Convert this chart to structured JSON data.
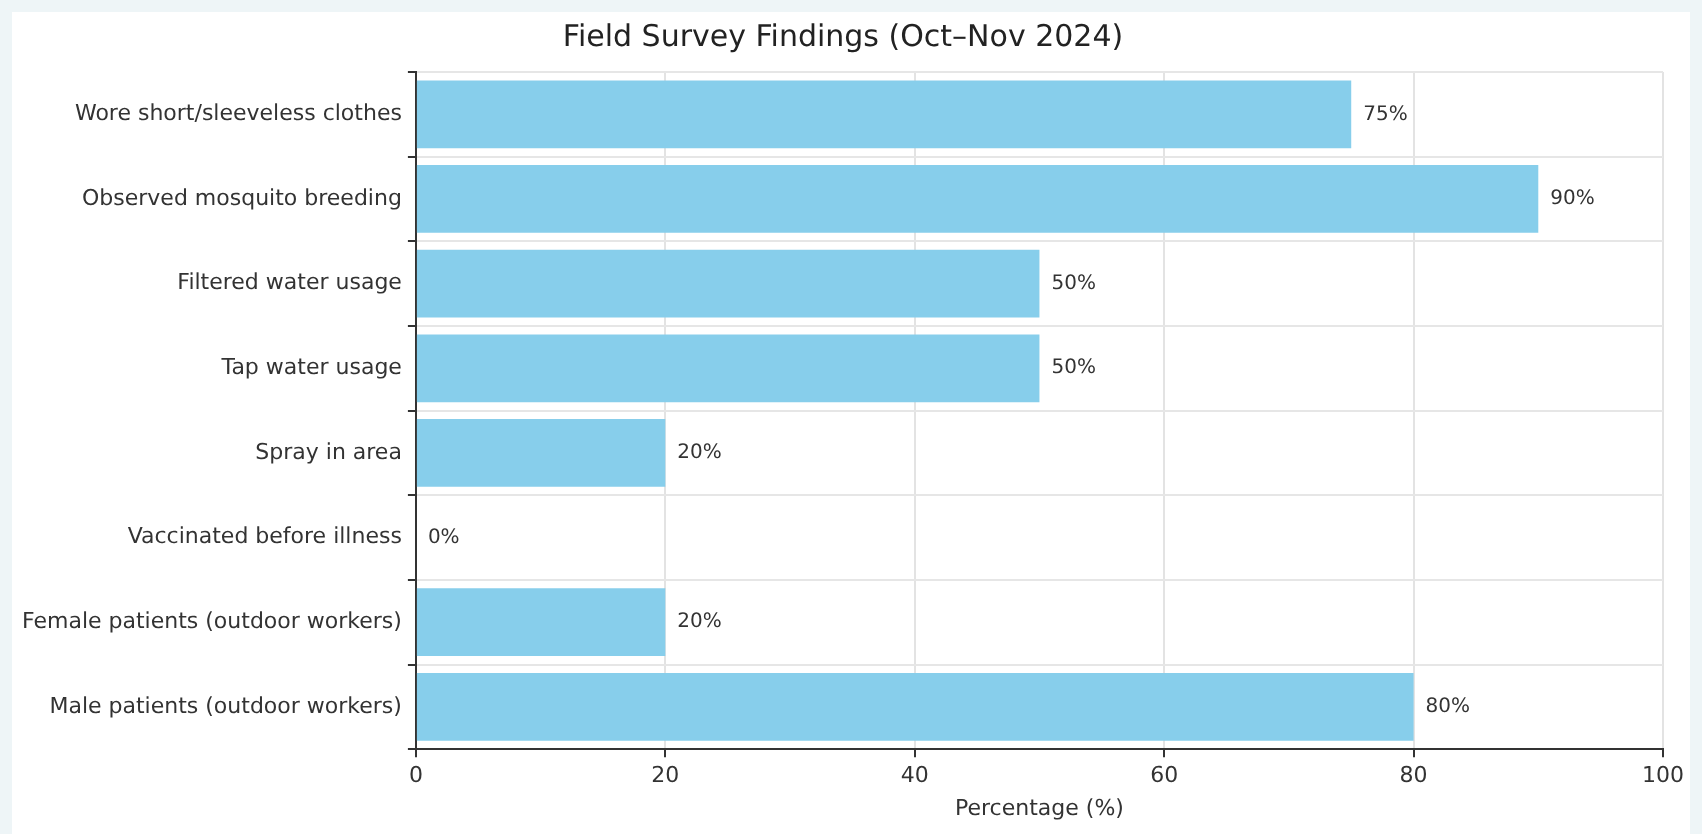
{
  "chart_data": {
    "type": "bar",
    "orientation": "horizontal",
    "title": "Field Survey Findings (Oct–Nov 2024)",
    "xlabel": "Percentage (%)",
    "categories": [
      "Wore short/sleeveless clothes",
      "Observed mosquito breeding",
      "Filtered water usage",
      "Tap water usage",
      "Spray in area",
      "Vaccinated before illness",
      "Female patients (outdoor workers)",
      "Male patients (outdoor workers)"
    ],
    "values": [
      75,
      90,
      50,
      50,
      20,
      0,
      20,
      80
    ],
    "value_labels": [
      "75%",
      "90%",
      "50%",
      "50%",
      "20%",
      "0%",
      "20%",
      "80%"
    ],
    "color": "#87ceeb",
    "xlim": [
      0,
      100
    ],
    "xticks": [
      0,
      20,
      40,
      60,
      80,
      100
    ],
    "grid": true,
    "legend": false
  }
}
